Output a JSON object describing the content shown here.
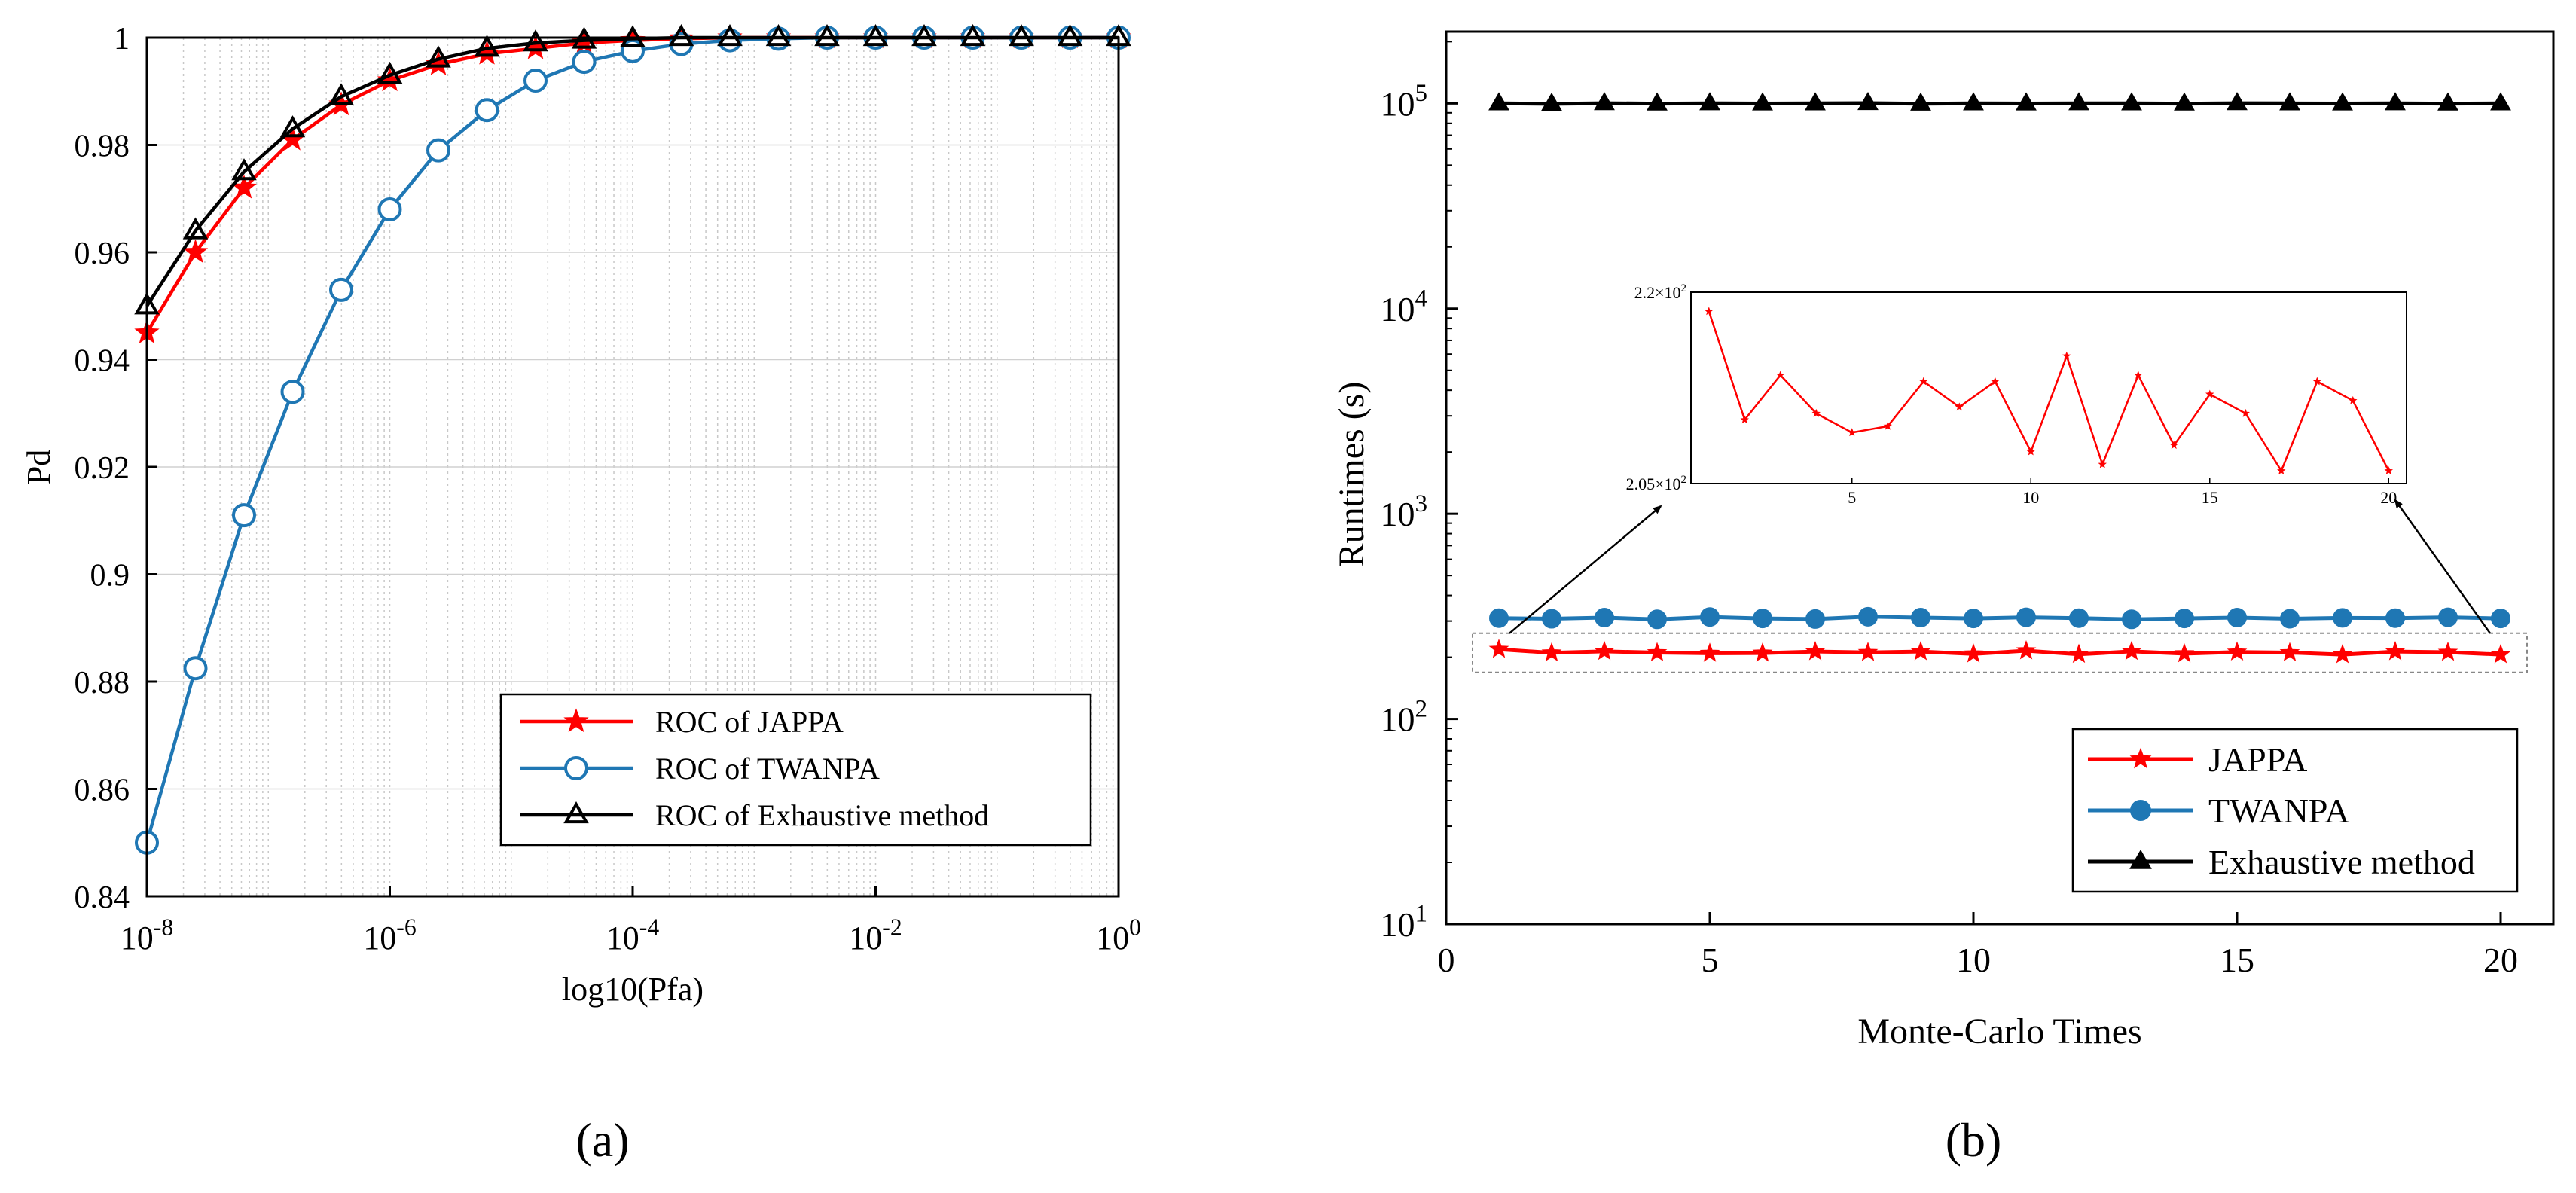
{
  "chart_data": [
    {
      "type": "line",
      "panel_label": "a",
      "title": "",
      "xlabel": "log10(Pfa)",
      "ylabel": "Pd",
      "xscale": "log",
      "xlim_exp": [
        -8,
        0
      ],
      "ylim": [
        0.84,
        1.0
      ],
      "grid": true,
      "xticks": [
        {
          "value": -8,
          "base": "10",
          "exp": "-8"
        },
        {
          "value": -6,
          "base": "10",
          "exp": "-6"
        },
        {
          "value": -4,
          "base": "10",
          "exp": "-4"
        },
        {
          "value": -2,
          "base": "10",
          "exp": "-2"
        },
        {
          "value": 0,
          "base": "10",
          "exp": "0"
        }
      ],
      "yticks": [
        {
          "value": 0.84,
          "label": "0.84"
        },
        {
          "value": 0.86,
          "label": "0.86"
        },
        {
          "value": 0.88,
          "label": "0.88"
        },
        {
          "value": 0.9,
          "label": "0.9"
        },
        {
          "value": 0.92,
          "label": "0.92"
        },
        {
          "value": 0.94,
          "label": "0.94"
        },
        {
          "value": 0.96,
          "label": "0.96"
        },
        {
          "value": 0.98,
          "label": "0.98"
        },
        {
          "value": 1.0,
          "label": "1"
        }
      ],
      "x_exponents": [
        -8,
        -7.6,
        -7.2,
        -6.8,
        -6.4,
        -6,
        -5.6,
        -5.2,
        -4.8,
        -4.4,
        -4,
        -3.6,
        -3.2,
        -2.8,
        -2.4,
        -2,
        -1.6,
        -1.2,
        -0.8,
        -0.4,
        0
      ],
      "legend_position": "bottom-right",
      "series": [
        {
          "name": "ROC of JAPPA",
          "color": "#ff0000",
          "marker": "star",
          "values": [
            0.945,
            0.96,
            0.972,
            0.981,
            0.9875,
            0.992,
            0.995,
            0.997,
            0.998,
            0.999,
            0.9995,
            0.9998,
            1.0,
            1.0,
            1.0,
            1.0,
            1.0,
            1.0,
            1.0,
            1.0,
            1.0
          ]
        },
        {
          "name": "ROC of TWANPA",
          "color": "#1f77b4",
          "marker": "circle",
          "values": [
            0.85,
            0.8825,
            0.911,
            0.934,
            0.953,
            0.968,
            0.979,
            0.9865,
            0.992,
            0.9955,
            0.9975,
            0.9988,
            0.9995,
            0.9998,
            1.0,
            1.0,
            1.0,
            1.0,
            1.0,
            1.0,
            1.0
          ]
        },
        {
          "name": "ROC of Exhaustive method",
          "color": "#000000",
          "marker": "triangle",
          "values": [
            0.95,
            0.964,
            0.975,
            0.983,
            0.989,
            0.993,
            0.996,
            0.998,
            0.999,
            0.9995,
            0.9998,
            1.0,
            1.0,
            1.0,
            1.0,
            1.0,
            1.0,
            1.0,
            1.0,
            1.0,
            1.0
          ]
        }
      ]
    },
    {
      "type": "line",
      "panel_label": "b",
      "title": "",
      "xlabel": "Monte-Carlo Times",
      "ylabel": "Runtimes (s)",
      "yscale": "log",
      "xlim": [
        0,
        21
      ],
      "ylim_exp": [
        1,
        5.35
      ],
      "xticks": [
        {
          "value": 0,
          "label": "0"
        },
        {
          "value": 5,
          "label": "5"
        },
        {
          "value": 10,
          "label": "10"
        },
        {
          "value": 15,
          "label": "15"
        },
        {
          "value": 20,
          "label": "20"
        }
      ],
      "yticks": [
        {
          "value": 1,
          "base": "10",
          "exp": "1"
        },
        {
          "value": 2,
          "base": "10",
          "exp": "2"
        },
        {
          "value": 3,
          "base": "10",
          "exp": "3"
        },
        {
          "value": 4,
          "base": "10",
          "exp": "4"
        },
        {
          "value": 5,
          "base": "10",
          "exp": "5"
        }
      ],
      "x": [
        1,
        2,
        3,
        4,
        5,
        6,
        7,
        8,
        9,
        10,
        11,
        12,
        13,
        14,
        15,
        16,
        17,
        18,
        19,
        20
      ],
      "legend_position": "bottom-right",
      "series": [
        {
          "name": "JAPPA",
          "color": "#ff0000",
          "marker": "star",
          "values": [
            218.5,
            210.0,
            213.5,
            210.5,
            209.0,
            209.5,
            213.0,
            211.0,
            213.0,
            207.5,
            215.0,
            206.5,
            213.5,
            208.0,
            212.0,
            210.5,
            206.0,
            213.0,
            211.5,
            206.0
          ]
        },
        {
          "name": "TWANPA",
          "color": "#1f77b4",
          "marker": "circle",
          "values": [
            310,
            308,
            312,
            306,
            314,
            309,
            307,
            315,
            312,
            309,
            313,
            310,
            306,
            309,
            312,
            308,
            311,
            310,
            313,
            309
          ]
        },
        {
          "name": "Exhaustive method",
          "color": "#000000",
          "marker": "triangle",
          "values": [
            100000,
            99500,
            100200,
            99800,
            100100,
            99900,
            100000,
            100300,
            99700,
            100000,
            99900,
            100100,
            100000,
            99800,
            100200,
            100000,
            99900,
            100100,
            99800,
            100000
          ]
        }
      ],
      "inset": {
        "series_name": "JAPPA",
        "ylim": [
          205,
          220
        ],
        "yticks": [
          {
            "value": 220,
            "mant": "2.2",
            "times": "×10",
            "exp": "2"
          },
          {
            "value": 205,
            "mant": "2.05",
            "times": "×10",
            "exp": "2"
          }
        ],
        "xticks": [
          {
            "value": 5,
            "label": "5"
          },
          {
            "value": 10,
            "label": "10"
          },
          {
            "value": 15,
            "label": "15"
          },
          {
            "value": 20,
            "label": "20"
          }
        ]
      }
    }
  ],
  "captions": {
    "a": "(a)",
    "b": "(b)"
  }
}
